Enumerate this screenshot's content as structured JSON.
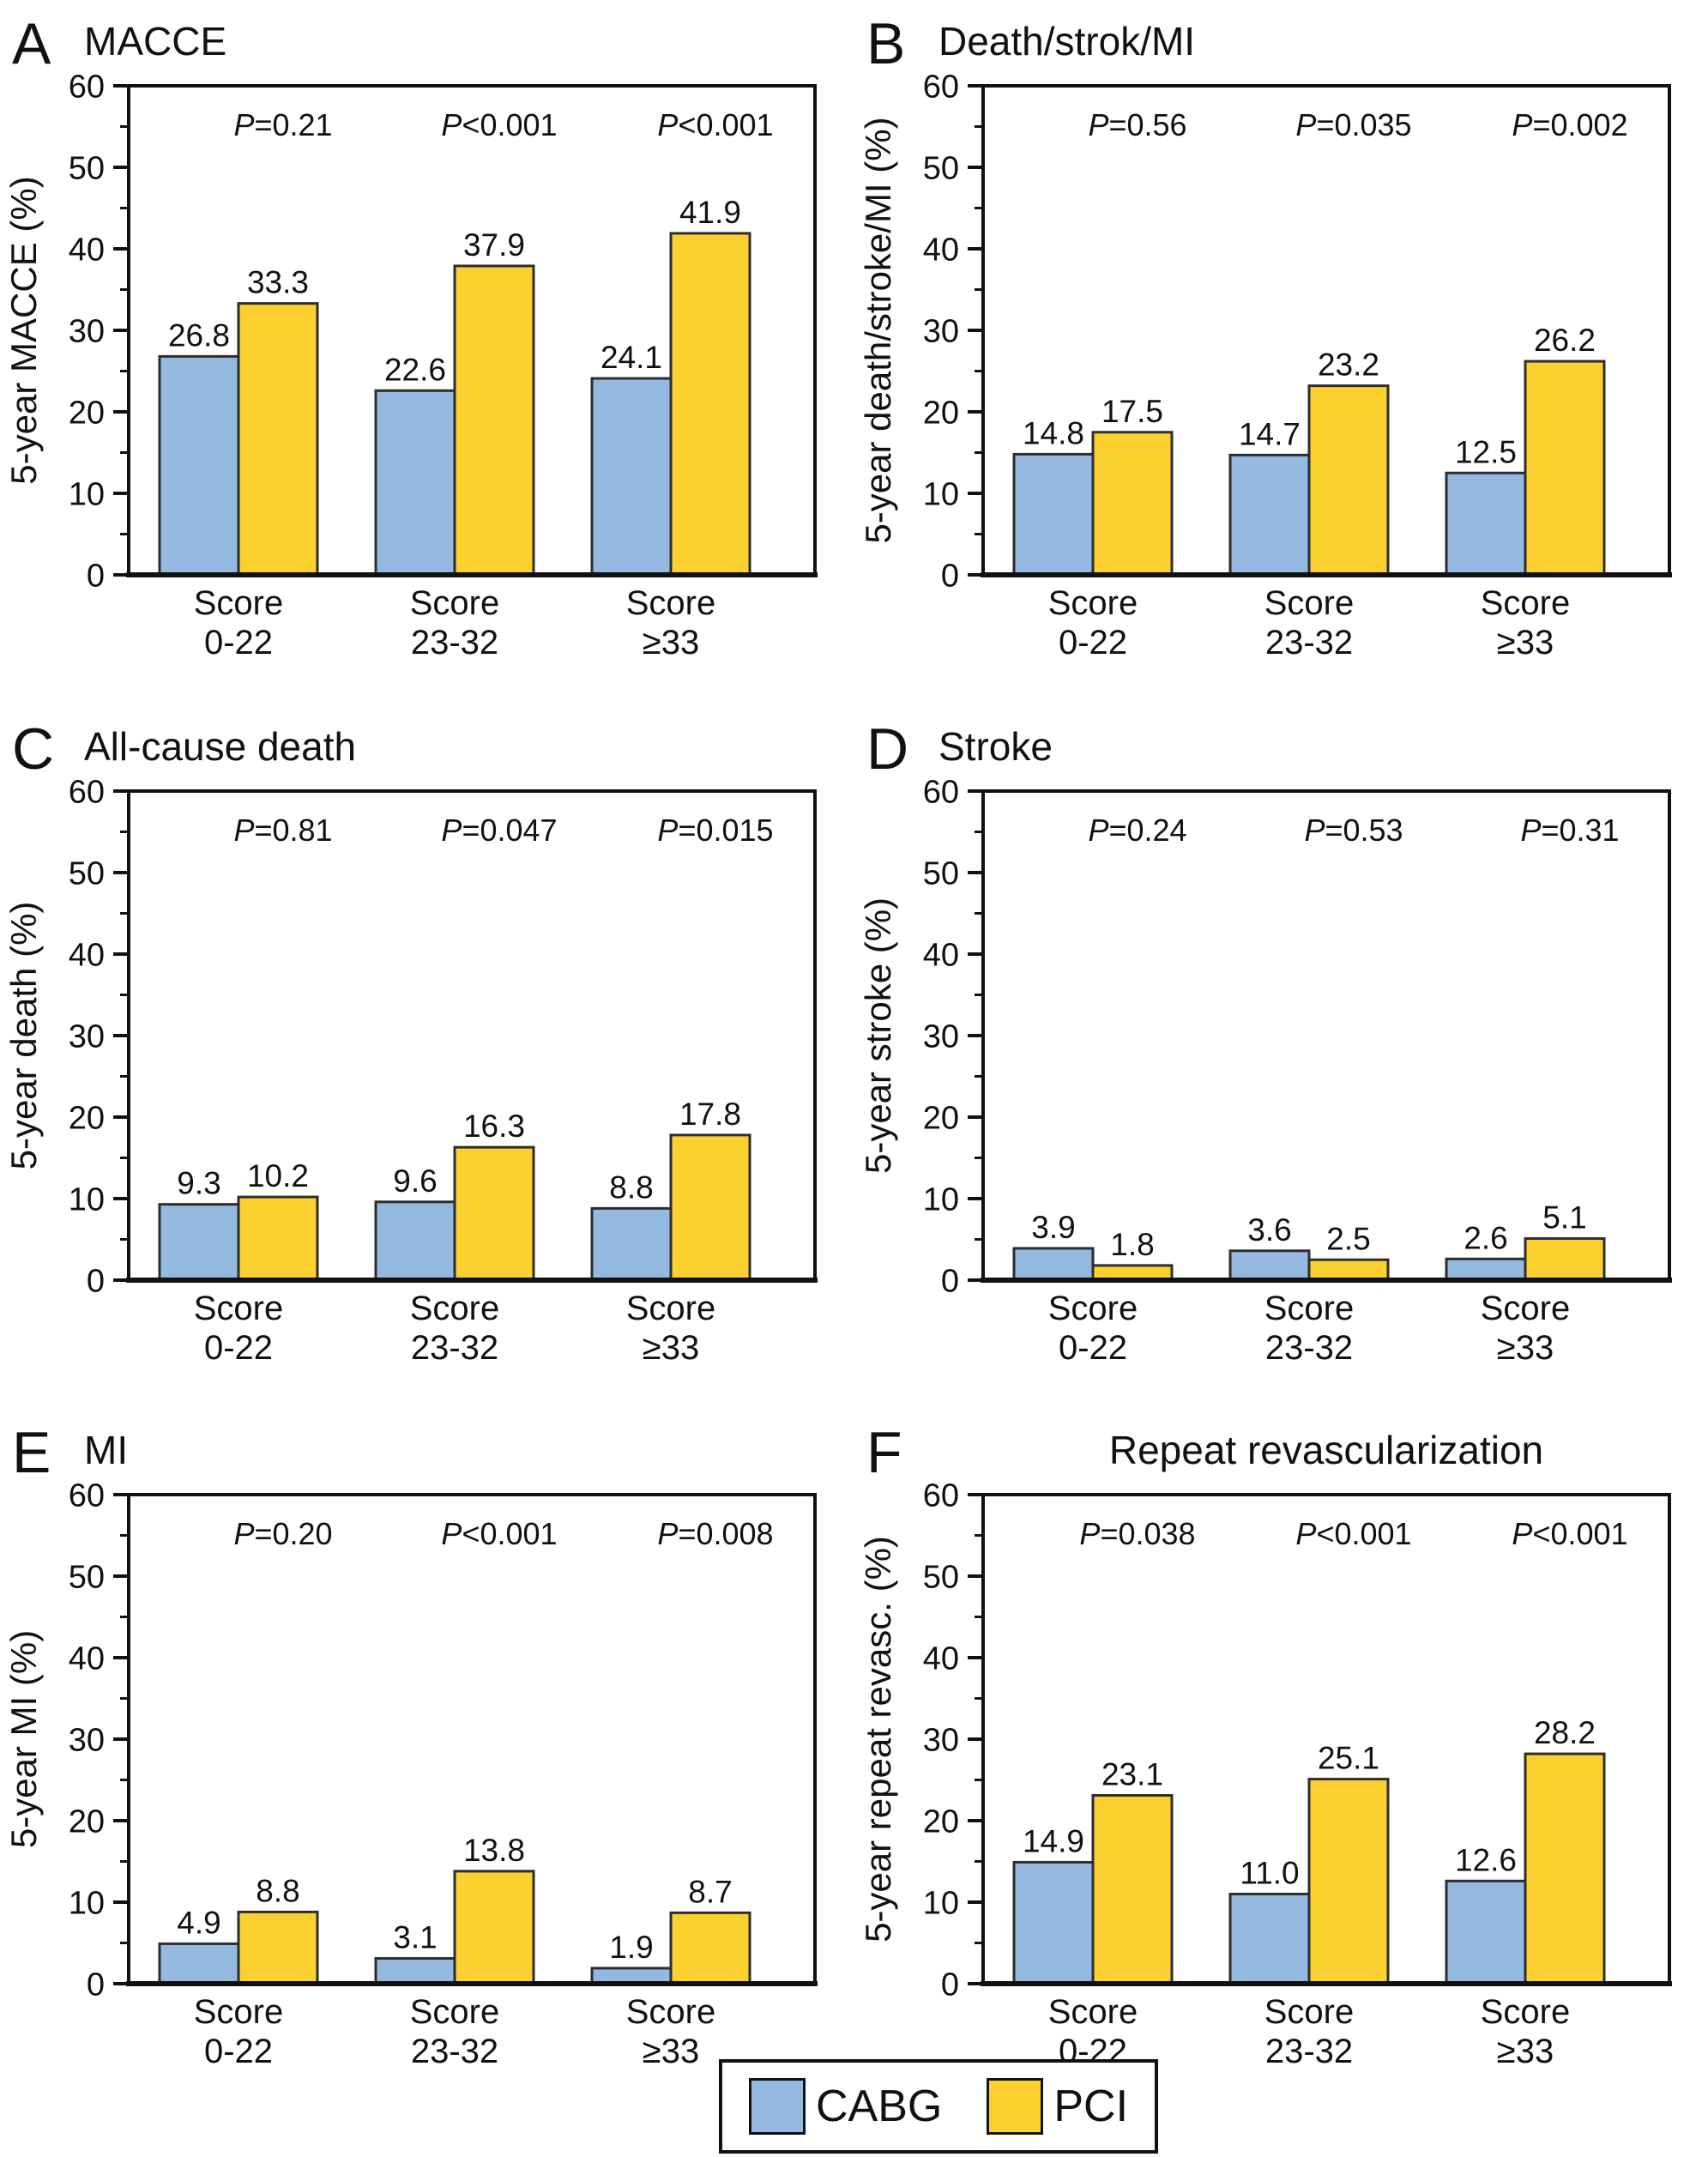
{
  "figure": {
    "legend": {
      "items": [
        {
          "label": "CABG",
          "color": "#94b9e0"
        },
        {
          "label": "PCI",
          "color": "#fcd12f"
        }
      ]
    },
    "bar_outline_color": "#2d2d2d",
    "axis_color": "#111111"
  },
  "chart_data": [
    {
      "type": "bar",
      "panel_letter": "A",
      "title": "MACCE",
      "ylabel": "5-year MACCE (%)",
      "ylim": [
        0,
        60
      ],
      "ytick_step": 10,
      "yminor_step": 5,
      "categories": [
        "Score 0-22",
        "Score 23-32",
        "Score ≥33"
      ],
      "p_values": [
        "P=0.21",
        "P<0.001",
        "P<0.001"
      ],
      "series": [
        {
          "name": "CABG",
          "values": [
            26.8,
            22.6,
            24.1
          ]
        },
        {
          "name": "PCI",
          "values": [
            33.3,
            37.9,
            41.9
          ]
        }
      ]
    },
    {
      "type": "bar",
      "panel_letter": "B",
      "title": "Death/strok/MI",
      "ylabel": "5-year death/stroke/MI (%)",
      "ylim": [
        0,
        60
      ],
      "ytick_step": 10,
      "yminor_step": 5,
      "categories": [
        "Score 0-22",
        "Score 23-32",
        "Score ≥33"
      ],
      "p_values": [
        "P=0.56",
        "P=0.035",
        "P=0.002"
      ],
      "series": [
        {
          "name": "CABG",
          "values": [
            14.8,
            14.7,
            12.5
          ]
        },
        {
          "name": "PCI",
          "values": [
            17.5,
            23.2,
            26.2
          ]
        }
      ]
    },
    {
      "type": "bar",
      "panel_letter": "C",
      "title": "All-cause death",
      "ylabel": "5-year death (%)",
      "ylim": [
        0,
        60
      ],
      "ytick_step": 10,
      "yminor_step": 5,
      "categories": [
        "Score 0-22",
        "Score 23-32",
        "Score ≥33"
      ],
      "p_values": [
        "P=0.81",
        "P=0.047",
        "P=0.015"
      ],
      "series": [
        {
          "name": "CABG",
          "values": [
            9.3,
            9.6,
            8.8
          ]
        },
        {
          "name": "PCI",
          "values": [
            10.2,
            16.3,
            17.8
          ]
        }
      ]
    },
    {
      "type": "bar",
      "panel_letter": "D",
      "title": "Stroke",
      "ylabel": "5-year stroke (%)",
      "ylim": [
        0,
        60
      ],
      "ytick_step": 10,
      "yminor_step": 5,
      "categories": [
        "Score 0-22",
        "Score 23-32",
        "Score ≥33"
      ],
      "p_values": [
        "P=0.24",
        "P=0.53",
        "P=0.31"
      ],
      "series": [
        {
          "name": "CABG",
          "values": [
            3.9,
            3.6,
            2.6
          ]
        },
        {
          "name": "PCI",
          "values": [
            1.8,
            2.5,
            5.1
          ]
        }
      ]
    },
    {
      "type": "bar",
      "panel_letter": "E",
      "title": "MI",
      "ylabel": "5-year MI (%)",
      "ylim": [
        0,
        60
      ],
      "ytick_step": 10,
      "yminor_step": 5,
      "categories": [
        "Score 0-22",
        "Score 23-32",
        "Score ≥33"
      ],
      "p_values": [
        "P=0.20",
        "P<0.001",
        "P=0.008"
      ],
      "series": [
        {
          "name": "CABG",
          "values": [
            4.9,
            3.1,
            1.9
          ]
        },
        {
          "name": "PCI",
          "values": [
            8.8,
            13.8,
            8.7
          ]
        }
      ]
    },
    {
      "type": "bar",
      "panel_letter": "F",
      "title": "Repeat revascularization",
      "ylabel": "5-year repeat revasc. (%)",
      "ylim": [
        0,
        60
      ],
      "ytick_step": 10,
      "yminor_step": 5,
      "categories": [
        "Score 0-22",
        "Score 23-32",
        "Score ≥33"
      ],
      "p_values": [
        "P=0.038",
        "P<0.001",
        "P<0.001"
      ],
      "series": [
        {
          "name": "CABG",
          "values": [
            14.9,
            11.0,
            12.6
          ]
        },
        {
          "name": "PCI",
          "values": [
            23.1,
            25.1,
            28.2
          ]
        }
      ]
    }
  ]
}
